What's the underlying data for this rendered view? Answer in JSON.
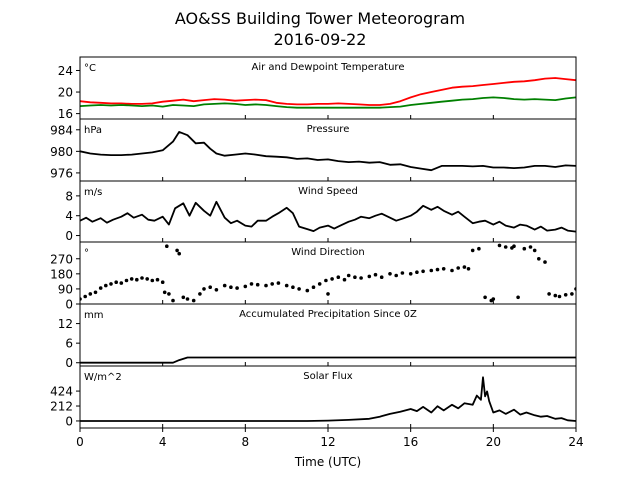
{
  "figure": {
    "title": "AO&SS Building Tower Meteorogram",
    "subtitle": "2016-09-22",
    "xlabel": "Time (UTC)",
    "xticks": [
      0,
      4,
      8,
      12,
      16,
      20,
      24
    ]
  },
  "chart_data": [
    {
      "type": "line",
      "title": "Air and Dewpoint Temperature",
      "unit": "°C",
      "ylim": [
        15,
        26.5
      ],
      "yticks": [
        16,
        20,
        24
      ],
      "xlim": [
        0,
        24
      ],
      "series": [
        {
          "color": "#ff0000",
          "x": [
            0,
            0.5,
            1,
            1.5,
            2,
            2.5,
            3,
            3.5,
            4,
            4.5,
            5,
            5.5,
            6,
            6.5,
            7,
            7.5,
            8,
            8.5,
            9,
            9.5,
            10,
            10.5,
            11,
            11.5,
            12,
            12.5,
            13,
            13.5,
            14,
            14.5,
            15,
            15.5,
            16,
            16.5,
            17,
            17.5,
            18,
            18.5,
            19,
            19.5,
            20,
            20.5,
            21,
            21.5,
            22,
            22.5,
            23,
            23.5,
            24
          ],
          "y": [
            18.3,
            18.1,
            18.0,
            17.9,
            17.9,
            17.8,
            17.8,
            17.9,
            18.2,
            18.4,
            18.6,
            18.3,
            18.5,
            18.7,
            18.6,
            18.4,
            18.5,
            18.6,
            18.5,
            18.0,
            17.8,
            17.7,
            17.7,
            17.8,
            17.8,
            17.9,
            17.8,
            17.7,
            17.6,
            17.6,
            17.8,
            18.3,
            19.0,
            19.6,
            20.0,
            20.4,
            20.8,
            21.0,
            21.1,
            21.3,
            21.5,
            21.7,
            21.9,
            22.0,
            22.2,
            22.5,
            22.6,
            22.4,
            22.2
          ]
        },
        {
          "color": "#008000",
          "x": [
            0,
            0.5,
            1,
            1.5,
            2,
            2.5,
            3,
            3.5,
            4,
            4.5,
            5,
            5.5,
            6,
            6.5,
            7,
            7.5,
            8,
            8.5,
            9,
            9.5,
            10,
            10.5,
            11,
            11.5,
            12,
            12.5,
            13,
            13.5,
            14,
            14.5,
            15,
            15.5,
            16,
            16.5,
            17,
            17.5,
            18,
            18.5,
            19,
            19.5,
            20,
            20.5,
            21,
            21.5,
            22,
            22.5,
            23,
            23.5,
            24
          ],
          "y": [
            17.4,
            17.5,
            17.6,
            17.5,
            17.6,
            17.5,
            17.4,
            17.5,
            17.3,
            17.6,
            17.5,
            17.4,
            17.7,
            17.8,
            17.9,
            17.8,
            17.6,
            17.7,
            17.6,
            17.4,
            17.2,
            17.1,
            17.1,
            17.1,
            17.1,
            17.1,
            17.1,
            17.1,
            17.1,
            17.1,
            17.2,
            17.3,
            17.6,
            17.8,
            18.0,
            18.2,
            18.4,
            18.6,
            18.7,
            18.9,
            19.0,
            18.9,
            18.7,
            18.6,
            18.7,
            18.6,
            18.5,
            18.8,
            19.0
          ]
        }
      ]
    },
    {
      "type": "line",
      "title": "Pressure",
      "unit": "hPa",
      "ylim": [
        974.5,
        986
      ],
      "yticks": [
        976,
        980,
        984
      ],
      "xlim": [
        0,
        24
      ],
      "series": [
        {
          "color": "#000000",
          "x": [
            0,
            0.5,
            1,
            1.5,
            2,
            2.5,
            3,
            3.5,
            4,
            4.5,
            4.8,
            5.2,
            5.6,
            6,
            6.3,
            6.6,
            7,
            7.5,
            8,
            8.5,
            9,
            9.5,
            10,
            10.5,
            11,
            11.5,
            12,
            12.5,
            13,
            13.5,
            14,
            14.5,
            15,
            15.5,
            16,
            16.5,
            17,
            17.5,
            18,
            18.5,
            19,
            19.5,
            20,
            20.5,
            21,
            21.5,
            22,
            22.5,
            23,
            23.5,
            24
          ],
          "y": [
            980.0,
            979.6,
            979.4,
            979.3,
            979.3,
            979.4,
            979.6,
            979.8,
            980.2,
            981.8,
            983.6,
            983.0,
            981.5,
            981.6,
            980.5,
            979.6,
            979.2,
            979.4,
            979.6,
            979.4,
            979.1,
            979.0,
            978.9,
            978.6,
            978.7,
            978.4,
            978.5,
            978.2,
            978.0,
            978.1,
            977.9,
            978.0,
            977.5,
            977.6,
            977.1,
            976.8,
            976.5,
            977.3,
            977.3,
            977.3,
            977.2,
            977.3,
            977.0,
            977.0,
            976.9,
            977.0,
            977.3,
            977.3,
            977.1,
            977.4,
            977.3
          ]
        }
      ]
    },
    {
      "type": "line",
      "title": "Wind Speed",
      "unit": "m/s",
      "ylim": [
        -1.3,
        11
      ],
      "yticks": [
        0,
        4,
        8
      ],
      "xlim": [
        0,
        24
      ],
      "series": [
        {
          "color": "#000000",
          "x": [
            0,
            0.3,
            0.6,
            1,
            1.3,
            1.6,
            2,
            2.3,
            2.6,
            3,
            3.3,
            3.6,
            4,
            4.3,
            4.6,
            5,
            5.3,
            5.6,
            6,
            6.3,
            6.6,
            7,
            7.3,
            7.6,
            8,
            8.3,
            8.6,
            9,
            9.3,
            9.6,
            10,
            10.3,
            10.6,
            11,
            11.3,
            11.6,
            12,
            12.3,
            12.6,
            13,
            13.3,
            13.6,
            14,
            14.3,
            14.6,
            15,
            15.3,
            15.6,
            16,
            16.3,
            16.6,
            17,
            17.3,
            17.6,
            18,
            18.3,
            18.6,
            19,
            19.3,
            19.6,
            20,
            20.3,
            20.6,
            21,
            21.3,
            21.6,
            22,
            22.3,
            22.6,
            23,
            23.3,
            23.6,
            24
          ],
          "y": [
            3.0,
            3.6,
            2.8,
            3.5,
            2.6,
            3.2,
            3.8,
            4.5,
            3.6,
            4.2,
            3.2,
            3.0,
            3.8,
            2.2,
            5.5,
            6.5,
            4.0,
            6.6,
            5.0,
            4.0,
            6.8,
            3.6,
            2.5,
            3.0,
            2.0,
            1.8,
            3.0,
            3.0,
            3.8,
            4.5,
            5.6,
            4.5,
            1.8,
            1.3,
            0.9,
            1.6,
            2.0,
            1.4,
            2.0,
            2.8,
            3.2,
            3.8,
            3.5,
            4.0,
            4.4,
            3.6,
            3.0,
            3.4,
            4.0,
            4.8,
            6.0,
            5.2,
            5.8,
            5.0,
            4.2,
            4.8,
            3.8,
            2.5,
            2.8,
            3.0,
            2.2,
            2.8,
            2.0,
            1.6,
            2.2,
            2.0,
            1.2,
            1.8,
            1.0,
            1.2,
            1.6,
            1.0,
            0.8
          ]
        }
      ]
    },
    {
      "type": "scatter",
      "title": "Wind Direction",
      "unit": "°",
      "ylim": [
        0,
        370
      ],
      "yticks": [
        0,
        90,
        180,
        270
      ],
      "xlim": [
        0,
        24
      ],
      "series": [
        {
          "color": "#000000",
          "x": [
            0,
            0.25,
            0.5,
            0.75,
            1,
            1.25,
            1.5,
            1.75,
            2,
            2.25,
            2.5,
            2.75,
            3,
            3.25,
            3.5,
            3.75,
            4,
            4.1,
            4.2,
            4.3,
            4.5,
            4.7,
            4.8,
            5,
            5.2,
            5.5,
            5.8,
            6,
            6.3,
            6.6,
            7,
            7.3,
            7.6,
            8,
            8.3,
            8.6,
            9,
            9.3,
            9.6,
            10,
            10.3,
            10.6,
            11,
            11.3,
            11.6,
            11.9,
            12,
            12.2,
            12.5,
            12.8,
            13,
            13.3,
            13.6,
            14,
            14.3,
            14.6,
            15,
            15.3,
            15.6,
            16,
            16.3,
            16.6,
            17,
            17.3,
            17.6,
            18,
            18.3,
            18.6,
            18.8,
            19,
            19.3,
            19.6,
            19.9,
            20,
            20.3,
            20.6,
            20.9,
            21,
            21.2,
            21.5,
            21.8,
            22,
            22.2,
            22.5,
            22.7,
            23,
            23.2,
            23.5,
            23.8,
            24
          ],
          "y": [
            30,
            45,
            60,
            70,
            95,
            110,
            120,
            130,
            125,
            140,
            150,
            145,
            155,
            150,
            140,
            145,
            130,
            70,
            345,
            60,
            20,
            320,
            300,
            40,
            30,
            20,
            60,
            90,
            100,
            85,
            110,
            100,
            95,
            105,
            120,
            115,
            110,
            120,
            125,
            110,
            100,
            90,
            80,
            100,
            120,
            140,
            60,
            150,
            160,
            145,
            170,
            160,
            155,
            165,
            175,
            160,
            180,
            170,
            185,
            180,
            190,
            195,
            200,
            205,
            210,
            200,
            215,
            220,
            210,
            320,
            330,
            40,
            20,
            30,
            350,
            340,
            335,
            345,
            40,
            330,
            340,
            320,
            270,
            250,
            60,
            50,
            45,
            55,
            60,
            90
          ]
        }
      ]
    },
    {
      "type": "line",
      "title": "Accumulated Precipitation Since 0Z",
      "unit": "mm",
      "ylim": [
        -1,
        18
      ],
      "yticks": [
        0,
        6,
        12
      ],
      "xlim": [
        0,
        24
      ],
      "series": [
        {
          "color": "#000000",
          "x": [
            0,
            4.5,
            4.8,
            5.2,
            24
          ],
          "y": [
            0,
            0,
            0.8,
            1.6,
            1.6
          ]
        }
      ]
    },
    {
      "type": "line",
      "title": "Solar Flux",
      "unit": "W/m^2",
      "ylim": [
        -100,
        780
      ],
      "yticks": [
        0,
        212,
        424
      ],
      "xlim": [
        0,
        24
      ],
      "series": [
        {
          "color": "#000000",
          "x": [
            0,
            11,
            12,
            13,
            14,
            14.5,
            15,
            15.5,
            16,
            16.3,
            16.6,
            17,
            17.3,
            17.6,
            18,
            18.3,
            18.6,
            19,
            19.2,
            19.4,
            19.5,
            19.6,
            19.7,
            19.8,
            20,
            20.3,
            20.6,
            21,
            21.3,
            21.6,
            22,
            22.3,
            22.6,
            23,
            23.3,
            23.6,
            24
          ],
          "y": [
            0,
            0,
            5,
            15,
            30,
            60,
            100,
            130,
            170,
            140,
            200,
            120,
            210,
            150,
            230,
            180,
            250,
            230,
            360,
            300,
            620,
            350,
            420,
            280,
            120,
            150,
            100,
            160,
            90,
            120,
            80,
            60,
            70,
            30,
            40,
            10,
            0
          ]
        }
      ]
    }
  ]
}
